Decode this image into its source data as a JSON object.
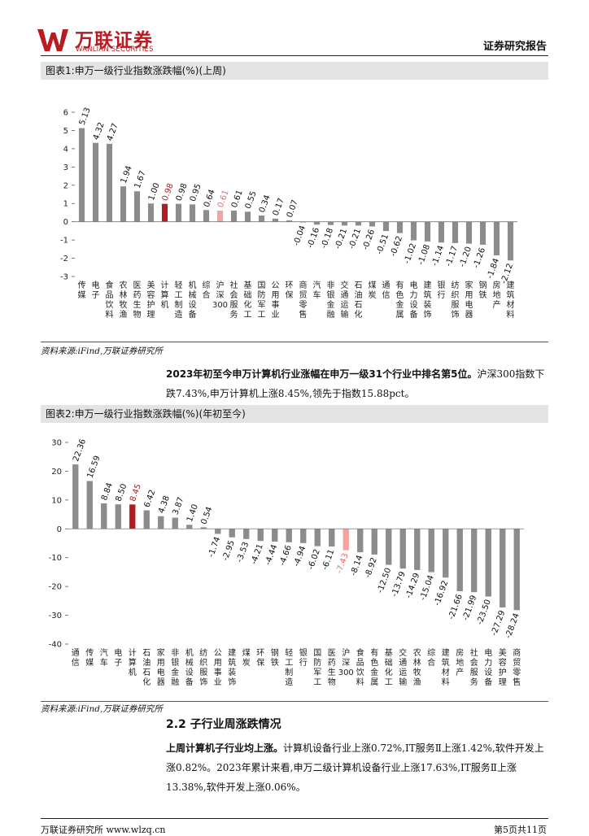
{
  "header": {
    "brand_cn": "万联证券",
    "brand_en": "WANLIAN SECURITIES",
    "report_type": "证券研究报告"
  },
  "figure1": {
    "title": "图表1:申万一级行业指数涨跌幅(%)(上周)",
    "source": "资料来源:iFind,万联证券研究所"
  },
  "figure2": {
    "title": "图表2:申万一级行业指数涨跌幅(%)(年初至今)",
    "source": "资料来源:iFind,万联证券研究所"
  },
  "para1": {
    "bold": "2023年初至今申万计算机行业涨幅在申万一级31个行业中排名第5位。",
    "text": "沪深300指数下跌7.43%,申万计算机上涨8.45%,领先于指数15.88pct。"
  },
  "section": {
    "title": "2.2 子行业周涨跌情况"
  },
  "para2": {
    "bold": "上周计算机子行业均上涨。",
    "text": "计算机设备行业上涨0.72%,IT服务Ⅱ上涨1.42%,软件开发上涨0.82%。2023年累计来看,申万二级计算机设备行业上涨17.63%,IT服务Ⅱ上涨13.38%,软件开发上涨0.06%。"
  },
  "footer": {
    "left": "万联证券研究所 www.wlzq.cn",
    "right": "第5页共11页"
  },
  "colors": {
    "bar": "#8c8c8c",
    "highlight": "#b01c20",
    "index": "#f4a3a3"
  },
  "chart_data": [
    {
      "type": "bar",
      "title": "申万一级行业指数涨跌幅(%)(上周)",
      "ylim": [
        -3,
        6
      ],
      "yticks": [
        6,
        5,
        4,
        3,
        2,
        1,
        0,
        -1,
        -2,
        -3
      ],
      "categories": [
        "传媒",
        "电子",
        "食品饮料",
        "农林牧渔",
        "医药生物",
        "美容护理",
        "计算机",
        "轻工制造",
        "机械设备",
        "综合",
        "沪深300",
        "社会服务",
        "基础化工",
        "国防军工",
        "公用事业",
        "环保",
        "商贸零售",
        "汽车",
        "非银金融",
        "交通运输",
        "石油石化",
        "煤炭",
        "通信",
        "有色金属",
        "电力设备",
        "建筑装饰",
        "银行",
        "纺织服饰",
        "家用电器",
        "钢铁",
        "房地产",
        "建筑材料"
      ],
      "values": [
        5.13,
        4.32,
        4.27,
        1.94,
        1.67,
        1.0,
        0.98,
        0.98,
        0.95,
        0.64,
        0.61,
        0.61,
        0.55,
        0.34,
        0.17,
        0.07,
        -0.04,
        -0.16,
        -0.18,
        -0.21,
        -0.21,
        -0.26,
        -0.51,
        -0.62,
        -1.02,
        -1.08,
        -1.14,
        -1.17,
        -1.2,
        -1.26,
        -1.84,
        -2.12
      ],
      "labels": [
        "5.13",
        "4.32",
        "4.27",
        "1.94",
        "1.67",
        "1.00",
        "0.98",
        "0.98",
        "0.95",
        "0.64",
        "0.61",
        "0.61",
        "0.55",
        "0.34",
        "0.17",
        "0.07",
        "-0.04",
        "-0.16",
        "-0.18",
        "-0.21",
        "-0.21",
        "-0.26",
        "-0.51",
        "-0.62",
        "-1.02",
        "-1.08",
        "-1.14",
        "-1.17",
        "-1.20",
        "-1.26",
        "-1.84",
        "-2.12"
      ],
      "highlight_index": 6,
      "index_bar": 10
    },
    {
      "type": "bar",
      "title": "申万一级行业指数涨跌幅(%)(年初至今)",
      "ylim": [
        -40,
        30
      ],
      "yticks": [
        30,
        20,
        10,
        0,
        -10,
        -20,
        -30,
        -40
      ],
      "categories": [
        "通信",
        "传媒",
        "汽车",
        "电子",
        "计算机",
        "石油石化",
        "家用电器",
        "非银金融",
        "机械设备",
        "纺织服饰",
        "公用事业",
        "建筑装饰",
        "煤炭",
        "环保",
        "钢铁",
        "轻工制造",
        "银行",
        "国防军工",
        "医药生物",
        "沪深300",
        "食品饮料",
        "有色金属",
        "基础化工",
        "交通运输",
        "农林牧渔",
        "综合",
        "建筑材料",
        "房地产",
        "社会服务",
        "电力设备",
        "美容护理",
        "商贸零售"
      ],
      "values": [
        22.36,
        16.59,
        8.84,
        8.5,
        8.45,
        6.42,
        4.38,
        3.87,
        1.4,
        0.54,
        -1.74,
        -2.95,
        -3.53,
        -4.21,
        -4.44,
        -4.66,
        -4.94,
        -6.02,
        -6.11,
        -7.43,
        -8.14,
        -8.92,
        -12.5,
        -13.79,
        -14.29,
        -15.04,
        -16.92,
        -21.66,
        -21.99,
        -23.5,
        -27.29,
        -28.24
      ],
      "labels": [
        "22.36",
        "16.59",
        "8.84",
        "8.50",
        "8.45",
        "6.42",
        "4.38",
        "3.87",
        "1.40",
        "0.54",
        "-1.74",
        "-2.95",
        "-3.53",
        "-4.21",
        "-4.44",
        "-4.66",
        "-4.94",
        "-6.02",
        "-6.11",
        "-7.43",
        "-8.14",
        "-8.92",
        "-12.50",
        "-13.79",
        "-14.29",
        "-15.04",
        "-16.92",
        "-21.66",
        "-21.99",
        "-23.50",
        "-27.29",
        "-28.24"
      ],
      "highlight_index": 4,
      "index_bar": 19
    }
  ]
}
